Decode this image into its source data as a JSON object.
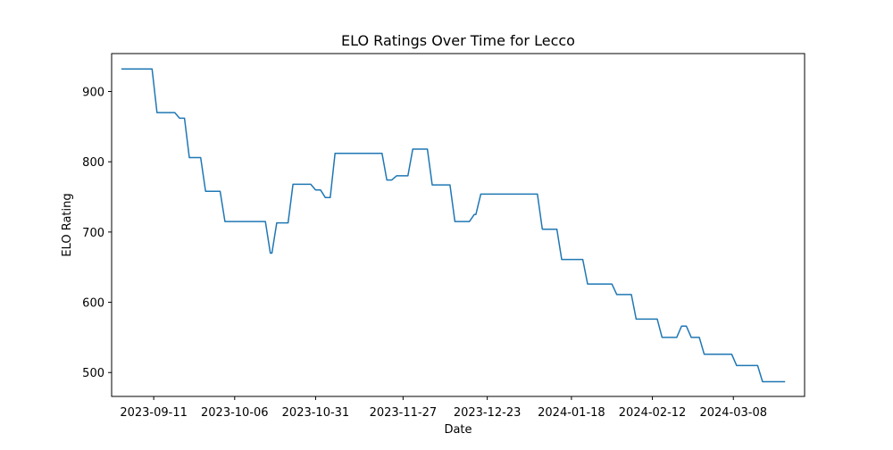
{
  "chart_data": {
    "type": "line",
    "title": "ELO Ratings Over Time for Lecco",
    "xlabel": "Date",
    "ylabel": "ELO Rating",
    "x_ticks": [
      "2023-09-11",
      "2023-10-06",
      "2023-10-31",
      "2023-11-27",
      "2023-12-23",
      "2024-01-18",
      "2024-02-12",
      "2024-03-08"
    ],
    "y_ticks": [
      500,
      600,
      700,
      800,
      900
    ],
    "xlim": [
      "2023-08-29",
      "2024-03-30"
    ],
    "ylim": [
      466,
      954
    ],
    "grid": false,
    "legend": "none",
    "colors": {
      "line": "#1f77b4",
      "axes": "#000000",
      "background": "#ffffff"
    },
    "series": [
      {
        "step": true,
        "points": [
          [
            "2023-09-01",
            932
          ],
          [
            "2023-09-12",
            870
          ],
          [
            "2023-09-19",
            862
          ],
          [
            "2023-09-22",
            806
          ],
          [
            "2023-09-27",
            758
          ],
          [
            "2023-10-03",
            715
          ],
          [
            "2023-10-17",
            670
          ],
          [
            "2023-10-19",
            713
          ],
          [
            "2023-10-24",
            768
          ],
          [
            "2023-10-31",
            760
          ],
          [
            "2023-11-03",
            749
          ],
          [
            "2023-11-06",
            812
          ],
          [
            "2023-11-22",
            774
          ],
          [
            "2023-11-25",
            780
          ],
          [
            "2023-11-30",
            818
          ],
          [
            "2023-12-06",
            767
          ],
          [
            "2023-12-13",
            715
          ],
          [
            "2023-12-19",
            725
          ],
          [
            "2023-12-21",
            754
          ],
          [
            "2024-01-09",
            704
          ],
          [
            "2024-01-15",
            661
          ],
          [
            "2024-01-23",
            626
          ],
          [
            "2024-02-01",
            611
          ],
          [
            "2024-02-07",
            576
          ],
          [
            "2024-02-15",
            550
          ],
          [
            "2024-02-21",
            566
          ],
          [
            "2024-02-24",
            550
          ],
          [
            "2024-02-28",
            526
          ],
          [
            "2024-03-09",
            510
          ],
          [
            "2024-03-17",
            487
          ],
          [
            "2024-03-24",
            487
          ]
        ]
      }
    ]
  }
}
